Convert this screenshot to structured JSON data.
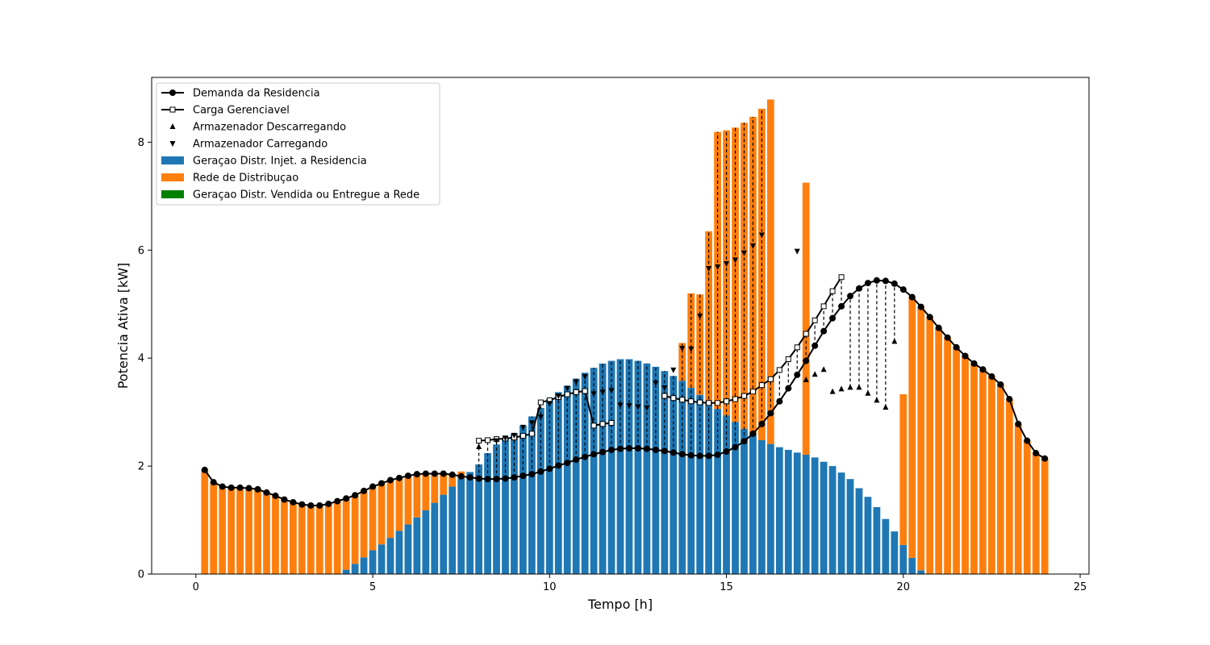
{
  "chart_data": {
    "type": "bar",
    "xlabel": "Tempo [h]",
    "ylabel": "Potencia Ativa [kW]",
    "xlim": [
      -1.25,
      25.25
    ],
    "ylim": [
      0,
      9.2
    ],
    "xticks": [
      0,
      5,
      10,
      15,
      20,
      25
    ],
    "yticks": [
      0,
      2,
      4,
      6,
      8
    ],
    "legend_position": "top-left",
    "colors": {
      "generation": "#1f77b4",
      "grid": "#ff7f0e",
      "sold": "#008000",
      "line": "#000000"
    },
    "legend": [
      {
        "label": "Demanda da Residencia",
        "kind": "line-dot"
      },
      {
        "label": "Carga Gerenciavel",
        "kind": "line-square"
      },
      {
        "label": "Armazenador Descarregando",
        "kind": "tri-up"
      },
      {
        "label": "Armazenador Carregando",
        "kind": "tri-down"
      },
      {
        "label": "Geraçao Distr. Injet. a Residencia",
        "kind": "patch-generation"
      },
      {
        "label": "Rede de Distribuçao",
        "kind": "patch-grid"
      },
      {
        "label": "Geraçao Distr. Vendida ou Entregue a Rede",
        "kind": "patch-sold"
      }
    ],
    "bar_width": 0.2,
    "time_start": 0.25,
    "time_step": 0.25,
    "demand": [
      1.93,
      1.7,
      1.62,
      1.6,
      1.6,
      1.59,
      1.57,
      1.51,
      1.45,
      1.38,
      1.33,
      1.29,
      1.27,
      1.27,
      1.3,
      1.35,
      1.4,
      1.46,
      1.54,
      1.62,
      1.68,
      1.74,
      1.78,
      1.82,
      1.85,
      1.86,
      1.86,
      1.86,
      1.84,
      1.81,
      1.79,
      1.77,
      1.76,
      1.76,
      1.77,
      1.79,
      1.82,
      1.85,
      1.9,
      1.95,
      2.01,
      2.06,
      2.12,
      2.17,
      2.22,
      2.26,
      2.3,
      2.32,
      2.33,
      2.33,
      2.32,
      2.3,
      2.28,
      2.25,
      2.22,
      2.2,
      2.19,
      2.19,
      2.21,
      2.27,
      2.35,
      2.46,
      2.6,
      2.78,
      2.98,
      3.2,
      3.44,
      3.69,
      3.95,
      4.23,
      4.5,
      4.74,
      4.96,
      5.15,
      5.29,
      5.39,
      5.44,
      5.43,
      5.38,
      5.27,
      5.13,
      4.95,
      4.76,
      4.56,
      4.38,
      4.2,
      4.04,
      3.9,
      3.79,
      3.66,
      3.51,
      3.24,
      2.78,
      2.47,
      2.24,
      2.14
    ],
    "managed_load": {
      "start_index": 31,
      "values": [
        2.47,
        2.48,
        2.5,
        2.51,
        2.53,
        2.56,
        2.6,
        3.18,
        3.22,
        3.28,
        3.33,
        3.37,
        3.39,
        2.75,
        2.78,
        2.8,
        null,
        null,
        null,
        null,
        null,
        3.3,
        3.26,
        3.23,
        3.2,
        3.18,
        3.17,
        3.17,
        3.2,
        3.24,
        3.3,
        3.38,
        3.5,
        3.61,
        3.78,
        3.98,
        4.2,
        4.45,
        4.7,
        4.96,
        5.24,
        5.5
      ]
    },
    "generation": [
      0,
      0,
      0,
      0,
      0,
      0,
      0,
      0,
      0,
      0,
      0,
      0,
      0,
      0,
      0,
      0,
      0.08,
      0.19,
      0.31,
      0.44,
      0.55,
      0.67,
      0.8,
      0.92,
      1.05,
      1.18,
      1.32,
      1.47,
      1.62,
      1.77,
      1.89,
      2.03,
      2.24,
      2.4,
      2.51,
      2.61,
      2.75,
      2.92,
      3.08,
      3.24,
      3.37,
      3.49,
      3.62,
      3.73,
      3.82,
      3.9,
      3.95,
      3.98,
      3.98,
      3.95,
      3.9,
      3.84,
      3.76,
      3.67,
      3.58,
      3.45,
      3.32,
      3.17,
      3.06,
      2.94,
      2.82,
      2.69,
      2.59,
      2.48,
      2.41,
      2.35,
      2.3,
      2.25,
      2.21,
      2.16,
      2.08,
      2.0,
      1.88,
      1.76,
      1.59,
      1.43,
      1.24,
      1.02,
      0.79,
      0.54,
      0.3,
      0.07,
      0,
      0,
      0,
      0,
      0,
      0,
      0,
      0,
      0,
      0,
      0,
      0,
      0,
      0
    ],
    "total": [
      1.93,
      1.7,
      1.62,
      1.6,
      1.6,
      1.59,
      1.57,
      1.51,
      1.45,
      1.38,
      1.33,
      1.29,
      1.27,
      1.27,
      1.3,
      1.35,
      1.4,
      1.46,
      1.54,
      1.62,
      1.68,
      1.74,
      1.78,
      1.82,
      1.85,
      1.86,
      1.86,
      1.86,
      1.84,
      1.9,
      1.89,
      2.03,
      2.24,
      2.4,
      2.51,
      2.61,
      2.75,
      2.92,
      3.08,
      3.24,
      3.37,
      3.49,
      3.62,
      3.73,
      3.82,
      3.9,
      3.95,
      3.98,
      3.98,
      3.95,
      3.9,
      3.84,
      3.76,
      3.67,
      4.28,
      5.2,
      5.18,
      6.35,
      8.19,
      8.22,
      8.27,
      8.36,
      8.47,
      8.62,
      8.79,
      null,
      null,
      null,
      7.25,
      null,
      null,
      null,
      null,
      null,
      null,
      null,
      null,
      null,
      null,
      3.33,
      5.13,
      4.95,
      4.76,
      4.56,
      4.38,
      4.2,
      4.04,
      3.9,
      3.79,
      3.66,
      3.51,
      3.24,
      2.78,
      2.47,
      2.24,
      2.14
    ],
    "charging_markers": {
      "start_index": 33,
      "values": [
        2.47,
        2.52,
        2.57,
        2.72,
        2.8,
        2.91,
        3.16,
        3.3,
        3.44,
        3.56,
        3.66,
        3.34,
        3.37,
        3.4,
        3.13,
        3.12,
        3.1,
        3.08,
        3.54,
        3.45,
        3.78,
        4.18,
        4.17,
        4.78,
        5.66,
        5.69,
        5.75,
        5.82,
        5.95,
        6.08,
        6.28,
        null,
        null,
        null,
        5.98
      ]
    },
    "discharging_markers": [
      {
        "i": 31,
        "v": 2.36
      },
      {
        "i": 68,
        "v": 3.6
      },
      {
        "i": 69,
        "v": 3.7
      },
      {
        "i": 70,
        "v": 3.79
      },
      {
        "i": 71,
        "v": 3.38
      },
      {
        "i": 72,
        "v": 3.43
      },
      {
        "i": 73,
        "v": 3.46
      },
      {
        "i": 74,
        "v": 3.46
      },
      {
        "i": 75,
        "v": 3.35
      },
      {
        "i": 76,
        "v": 3.22
      },
      {
        "i": 77,
        "v": 3.09
      },
      {
        "i": 78,
        "v": 4.31
      }
    ]
  }
}
